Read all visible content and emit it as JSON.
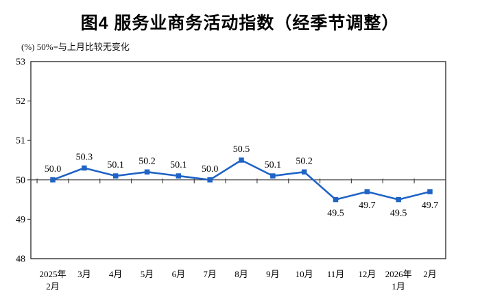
{
  "title": "图4 服务业商务活动指数（经季节调整）",
  "subtitle": "(%) 50%=与上月比较无变化",
  "chart_data": {
    "type": "line",
    "categories": [
      "2025年\n2月",
      "3月",
      "4月",
      "5月",
      "6月",
      "7月",
      "8月",
      "9月",
      "10月",
      "11月",
      "12月",
      "2026年\n1月",
      "2月"
    ],
    "values": [
      50.0,
      50.3,
      50.1,
      50.2,
      50.1,
      50.0,
      50.5,
      50.1,
      50.2,
      49.5,
      49.7,
      49.5,
      49.7
    ],
    "data_labels": [
      "50.0",
      "50.3",
      "50.1",
      "50.2",
      "50.1",
      "50.0",
      "50.5",
      "50.1",
      "50.2",
      "49.5",
      "49.7",
      "49.5",
      "49.7"
    ],
    "ylabel": "",
    "xlabel": "",
    "ylim": [
      48,
      53
    ],
    "yticks": [
      48,
      49,
      50,
      51,
      52,
      53
    ],
    "baseline": 50,
    "grid": false,
    "legend_position": "none",
    "marker": "square",
    "colors": {
      "line": "#1F63C5",
      "marker": "#1F63C5",
      "axis": "#3F3F3F",
      "text": "#000000"
    }
  }
}
